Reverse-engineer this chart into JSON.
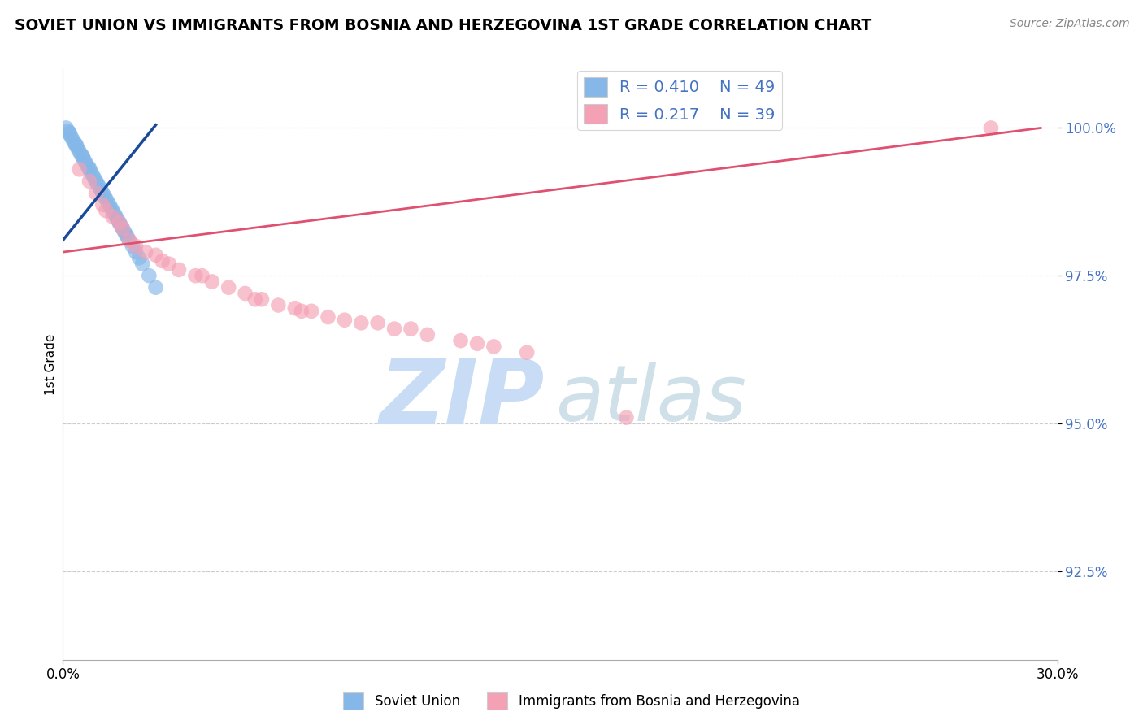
{
  "title": "SOVIET UNION VS IMMIGRANTS FROM BOSNIA AND HERZEGOVINA 1ST GRADE CORRELATION CHART",
  "source_text": "Source: ZipAtlas.com",
  "ylabel": "1st Grade",
  "yticks": [
    92.5,
    95.0,
    97.5,
    100.0
  ],
  "ytick_labels": [
    "92.5%",
    "95.0%",
    "97.5%",
    "100.0%"
  ],
  "xlim": [
    0.0,
    30.0
  ],
  "ylim": [
    91.0,
    101.0
  ],
  "legend_R1": "0.410",
  "legend_N1": "49",
  "legend_R2": "0.217",
  "legend_N2": "39",
  "blue_color": "#85B8E8",
  "pink_color": "#F4A0B5",
  "blue_line_color": "#1A4A9A",
  "pink_line_color": "#E05070",
  "watermark_zip_color": "#C8DDF5",
  "watermark_atlas_color": "#A8C8D8",
  "label_color": "#4472C4",
  "blue_x": [
    0.1,
    0.15,
    0.2,
    0.25,
    0.3,
    0.35,
    0.4,
    0.45,
    0.5,
    0.55,
    0.6,
    0.65,
    0.7,
    0.75,
    0.8,
    0.85,
    0.9,
    0.95,
    1.0,
    1.05,
    1.1,
    1.15,
    1.2,
    1.25,
    1.3,
    1.35,
    1.4,
    1.45,
    1.5,
    1.55,
    1.6,
    1.65,
    1.7,
    1.75,
    1.8,
    1.85,
    1.9,
    1.95,
    2.0,
    2.1,
    2.2,
    2.3,
    2.4,
    2.6,
    2.8,
    0.2,
    0.4,
    0.6,
    0.8
  ],
  "blue_y": [
    100.0,
    99.95,
    99.9,
    99.85,
    99.8,
    99.75,
    99.7,
    99.65,
    99.6,
    99.55,
    99.5,
    99.45,
    99.4,
    99.35,
    99.3,
    99.25,
    99.2,
    99.15,
    99.1,
    99.05,
    99.0,
    98.95,
    98.9,
    98.85,
    98.8,
    98.75,
    98.7,
    98.65,
    98.6,
    98.55,
    98.5,
    98.45,
    98.4,
    98.35,
    98.3,
    98.25,
    98.2,
    98.15,
    98.1,
    98.0,
    97.9,
    97.8,
    97.7,
    97.5,
    97.3,
    99.92,
    99.72,
    99.52,
    99.32
  ],
  "pink_x": [
    0.5,
    0.8,
    1.0,
    1.2,
    1.5,
    1.8,
    2.0,
    2.2,
    2.5,
    3.0,
    3.5,
    4.0,
    4.5,
    5.0,
    5.5,
    6.0,
    6.5,
    7.0,
    7.5,
    8.0,
    9.0,
    10.0,
    11.0,
    12.0,
    13.0,
    14.0,
    1.3,
    1.7,
    2.8,
    3.2,
    4.2,
    5.8,
    7.2,
    8.5,
    9.5,
    10.5,
    12.5,
    17.0,
    28.0
  ],
  "pink_y": [
    99.3,
    99.1,
    98.9,
    98.7,
    98.5,
    98.3,
    98.1,
    98.0,
    97.9,
    97.75,
    97.6,
    97.5,
    97.4,
    97.3,
    97.2,
    97.1,
    97.0,
    96.95,
    96.9,
    96.8,
    96.7,
    96.6,
    96.5,
    96.4,
    96.3,
    96.2,
    98.6,
    98.4,
    97.85,
    97.7,
    97.5,
    97.1,
    96.9,
    96.75,
    96.7,
    96.6,
    96.35,
    95.1,
    100.0
  ],
  "blue_trend_x": [
    0.0,
    2.8
  ],
  "blue_trend_y": [
    98.1,
    100.05
  ],
  "pink_trend_x": [
    0.0,
    29.5
  ],
  "pink_trend_y": [
    97.9,
    100.0
  ]
}
